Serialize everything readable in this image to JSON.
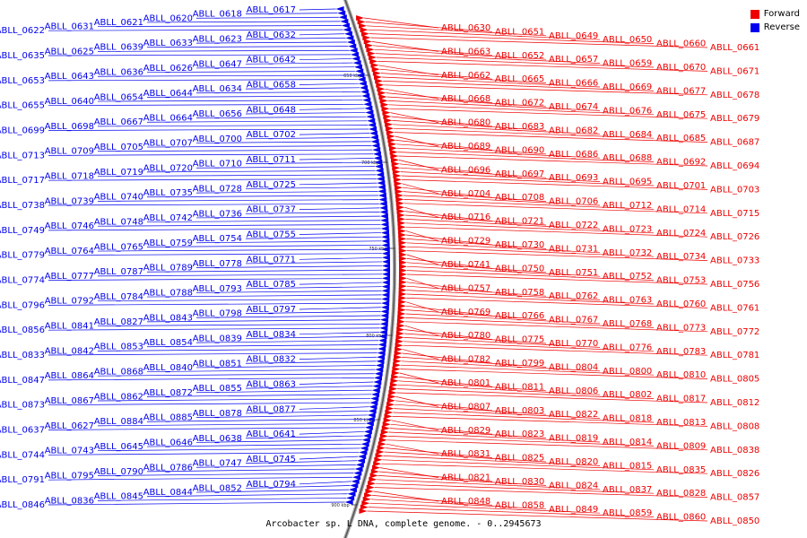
{
  "caption": "Arcobacter sp. L DNA, complete genome. - 0..2945673",
  "legend": [
    {
      "label": "Forward",
      "color": "#ee0000"
    },
    {
      "label": "Reverse",
      "color": "#0000ee"
    }
  ],
  "colors": {
    "forward": "#ee0000",
    "reverse": "#0000ee",
    "backbone": "#808080"
  },
  "scale_ticks": [
    "650 kbp",
    "700 kbp",
    "750 kbp",
    "800 kbp",
    "850 kbp",
    "900 kbp"
  ],
  "reverse_labels": [
    "ABLL_0617",
    "ABLL_0618",
    "ABLL_0620",
    "ABLL_0621",
    "ABLL_0631",
    "ABLL_0622",
    "ABLL_0632",
    "ABLL_0623",
    "ABLL_0633",
    "ABLL_0639",
    "ABLL_0625",
    "ABLL_0635",
    "ABLL_0642",
    "ABLL_0647",
    "ABLL_0626",
    "ABLL_0636",
    "ABLL_0643",
    "ABLL_0653",
    "ABLL_0658",
    "ABLL_0634",
    "ABLL_0644",
    "ABLL_0654",
    "ABLL_0640",
    "ABLL_0655",
    "ABLL_0648",
    "ABLL_0656",
    "ABLL_0664",
    "ABLL_0667",
    "ABLL_0698",
    "ABLL_0699",
    "ABLL_0702",
    "ABLL_0700",
    "ABLL_0707",
    "ABLL_0705",
    "ABLL_0709",
    "ABLL_0713",
    "ABLL_0711",
    "ABLL_0710",
    "ABLL_0720",
    "ABLL_0719",
    "ABLL_0718",
    "ABLL_0717",
    "ABLL_0725",
    "ABLL_0728",
    "ABLL_0735",
    "ABLL_0740",
    "ABLL_0739",
    "ABLL_0738",
    "ABLL_0737",
    "ABLL_0736",
    "ABLL_0742",
    "ABLL_0748",
    "ABLL_0746",
    "ABLL_0749",
    "ABLL_0755",
    "ABLL_0754",
    "ABLL_0759",
    "ABLL_0765",
    "ABLL_0764",
    "ABLL_0779",
    "ABLL_0771",
    "ABLL_0778",
    "ABLL_0789",
    "ABLL_0787",
    "ABLL_0777",
    "ABLL_0774",
    "ABLL_0785",
    "ABLL_0793",
    "ABLL_0788",
    "ABLL_0784",
    "ABLL_0792",
    "ABLL_0796",
    "ABLL_0797",
    "ABLL_0798",
    "ABLL_0843",
    "ABLL_0827",
    "ABLL_0841",
    "ABLL_0856",
    "ABLL_0834",
    "ABLL_0839",
    "ABLL_0854",
    "ABLL_0853",
    "ABLL_0842",
    "ABLL_0833",
    "ABLL_0832",
    "ABLL_0851",
    "ABLL_0840",
    "ABLL_0868",
    "ABLL_0864",
    "ABLL_0847",
    "ABLL_0863",
    "ABLL_0855",
    "ABLL_0872",
    "ABLL_0862",
    "ABLL_0867",
    "ABLL_0873",
    "ABLL_0877",
    "ABLL_0878",
    "ABLL_0885",
    "ABLL_0884",
    "ABLL_0627",
    "ABLL_0637",
    "ABLL_0641",
    "ABLL_0638",
    "ABLL_0646",
    "ABLL_0645",
    "ABLL_0743",
    "ABLL_0744",
    "ABLL_0745",
    "ABLL_0747",
    "ABLL_0786",
    "ABLL_0790",
    "ABLL_0795",
    "ABLL_0791",
    "ABLL_0794",
    "ABLL_0852",
    "ABLL_0844",
    "ABLL_0845",
    "ABLL_0836",
    "ABLL_0846"
  ],
  "forward_labels": [
    "ABLL_0630",
    "ABLL_0651",
    "ABLL_0649",
    "ABLL_0650",
    "ABLL_0660",
    "ABLL_0661",
    "ABLL_0663",
    "ABLL_0652",
    "ABLL_0657",
    "ABLL_0659",
    "ABLL_0670",
    "ABLL_0671",
    "ABLL_0662",
    "ABLL_0665",
    "ABLL_0666",
    "ABLL_0669",
    "ABLL_0677",
    "ABLL_0678",
    "ABLL_0668",
    "ABLL_0672",
    "ABLL_0674",
    "ABLL_0676",
    "ABLL_0675",
    "ABLL_0679",
    "ABLL_0680",
    "ABLL_0683",
    "ABLL_0682",
    "ABLL_0684",
    "ABLL_0685",
    "ABLL_0687",
    "ABLL_0689",
    "ABLL_0690",
    "ABLL_0686",
    "ABLL_0688",
    "ABLL_0692",
    "ABLL_0694",
    "ABLL_0696",
    "ABLL_0697",
    "ABLL_0693",
    "ABLL_0695",
    "ABLL_0701",
    "ABLL_0703",
    "ABLL_0704",
    "ABLL_0708",
    "ABLL_0706",
    "ABLL_0712",
    "ABLL_0714",
    "ABLL_0715",
    "ABLL_0716",
    "ABLL_0721",
    "ABLL_0722",
    "ABLL_0723",
    "ABLL_0724",
    "ABLL_0726",
    "ABLL_0729",
    "ABLL_0730",
    "ABLL_0731",
    "ABLL_0732",
    "ABLL_0734",
    "ABLL_0733",
    "ABLL_0741",
    "ABLL_0750",
    "ABLL_0751",
    "ABLL_0752",
    "ABLL_0753",
    "ABLL_0756",
    "ABLL_0757",
    "ABLL_0758",
    "ABLL_0762",
    "ABLL_0763",
    "ABLL_0760",
    "ABLL_0761",
    "ABLL_0769",
    "ABLL_0766",
    "ABLL_0767",
    "ABLL_0768",
    "ABLL_0773",
    "ABLL_0772",
    "ABLL_0780",
    "ABLL_0775",
    "ABLL_0770",
    "ABLL_0776",
    "ABLL_0783",
    "ABLL_0781",
    "ABLL_0782",
    "ABLL_0799",
    "ABLL_0804",
    "ABLL_0800",
    "ABLL_0810",
    "ABLL_0805",
    "ABLL_0801",
    "ABLL_0811",
    "ABLL_0806",
    "ABLL_0802",
    "ABLL_0817",
    "ABLL_0812",
    "ABLL_0807",
    "ABLL_0803",
    "ABLL_0822",
    "ABLL_0818",
    "ABLL_0813",
    "ABLL_0808",
    "ABLL_0829",
    "ABLL_0823",
    "ABLL_0819",
    "ABLL_0814",
    "ABLL_0809",
    "ABLL_0838",
    "ABLL_0831",
    "ABLL_0825",
    "ABLL_0820",
    "ABLL_0815",
    "ABLL_0835",
    "ABLL_0826",
    "ABLL_0821",
    "ABLL_0830",
    "ABLL_0824",
    "ABLL_0837",
    "ABLL_0828",
    "ABLL_0857",
    "ABLL_0848",
    "ABLL_0858",
    "ABLL_0849",
    "ABLL_0859",
    "ABLL_0860",
    "ABLL_0850"
  ]
}
